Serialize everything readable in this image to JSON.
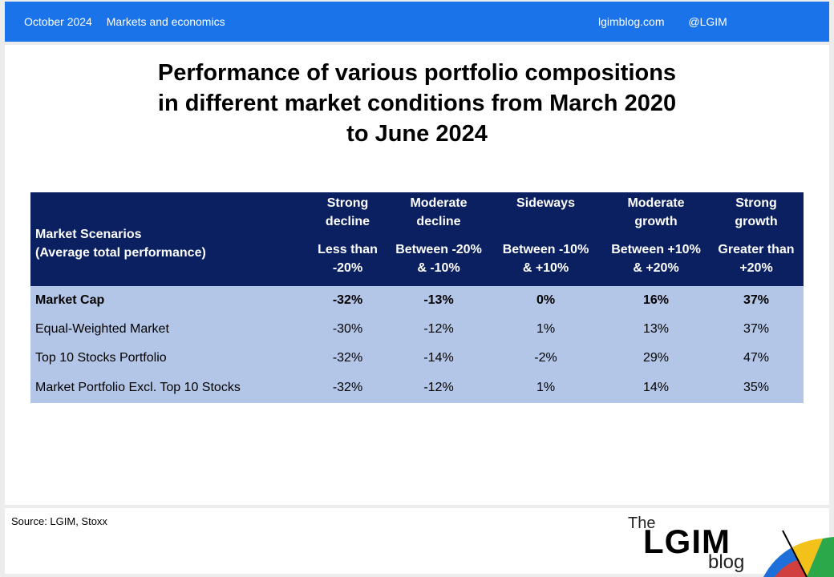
{
  "header": {
    "date": "October 2024",
    "category": "Markets and economics",
    "site": "lgimblog.com",
    "handle": "@LGIM"
  },
  "title_lines": [
    "Performance of various portfolio compositions",
    "in different market conditions from March 2020",
    "to June 2024"
  ],
  "table": {
    "scenario_header": [
      "Market Scenarios",
      "(Average total performance)"
    ],
    "columns": [
      {
        "name": [
          "Strong",
          "decline"
        ],
        "range": [
          "Less than",
          "-20%"
        ]
      },
      {
        "name": [
          "Moderate",
          "decline"
        ],
        "range": [
          "Between -20%",
          "& -10%"
        ]
      },
      {
        "name": [
          "Sideways"
        ],
        "range": [
          "Between -10%",
          "& +10%"
        ]
      },
      {
        "name": [
          "Moderate",
          "growth"
        ],
        "range": [
          "Between +10%",
          "& +20%"
        ]
      },
      {
        "name": [
          "Strong",
          "growth"
        ],
        "range": [
          "Greater than",
          "+20%"
        ]
      }
    ],
    "rows": [
      {
        "label": "Market Cap",
        "values": [
          "-32%",
          "-13%",
          "0%",
          "16%",
          "37%"
        ]
      },
      {
        "label": "Equal-Weighted Market",
        "values": [
          "-30%",
          "-12%",
          "1%",
          "13%",
          "37%"
        ]
      },
      {
        "label": "Top 10 Stocks Portfolio",
        "values": [
          "-32%",
          "-14%",
          "-2%",
          "29%",
          "47%"
        ]
      },
      {
        "label": "Market Portfolio Excl. Top 10 Stocks",
        "values": [
          "-32%",
          "-12%",
          "1%",
          "14%",
          "35%"
        ]
      }
    ]
  },
  "footer": {
    "source": "Source: LGIM,  Stoxx",
    "logo_the": "The",
    "logo_main": "LGIM",
    "logo_blog": "blog"
  },
  "colors": {
    "header_bar": "#1a73e8",
    "table_header": "#0b2060",
    "table_body": "#b4c6e7"
  }
}
